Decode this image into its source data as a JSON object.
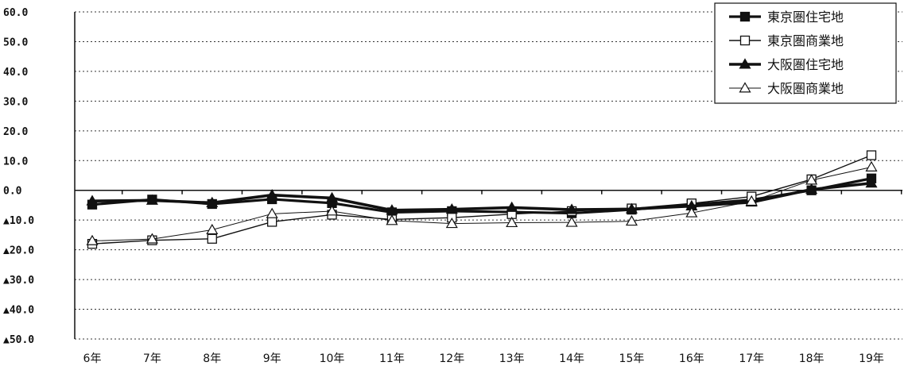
{
  "chart_data": {
    "type": "line",
    "title": "",
    "xlabel": "",
    "ylabel": "",
    "categories": [
      "6年",
      "7年",
      "8年",
      "9年",
      "10年",
      "11年",
      "12年",
      "13年",
      "14年",
      "15年",
      "16年",
      "17年",
      "18年",
      "19年"
    ],
    "ylim": [
      -50,
      60
    ],
    "yticks": [
      60,
      50,
      40,
      30,
      20,
      10,
      0,
      -10,
      -20,
      -30,
      -40,
      -50
    ],
    "ytick_labels": [
      "60.0",
      "50.0",
      "40.0",
      "30.0",
      "20.0",
      "10.0",
      "0.0",
      "▲10.0",
      "▲20.0",
      "▲30.0",
      "▲40.0",
      "▲50.0"
    ],
    "grid": true,
    "legend_position": "top-right",
    "series": [
      {
        "name": "東京圏住宅地",
        "marker": "filled-square",
        "values": [
          -4.8,
          -3.1,
          -4.6,
          -3.0,
          -4.3,
          -7.4,
          -7.0,
          -7.3,
          -7.7,
          -6.5,
          -4.8,
          -3.2,
          0.0,
          4.0
        ]
      },
      {
        "name": "東京圏商業地",
        "marker": "open-square",
        "values": [
          -18.0,
          -16.8,
          -16.3,
          -10.6,
          -8.2,
          -9.8,
          -9.2,
          -8.0,
          -7.0,
          -6.1,
          -4.4,
          -2.1,
          3.7,
          11.8
        ]
      },
      {
        "name": "大阪圏住宅地",
        "marker": "filled-triangle",
        "values": [
          -3.6,
          -3.4,
          -4.2,
          -1.6,
          -2.6,
          -6.7,
          -6.4,
          -5.8,
          -6.5,
          -6.3,
          -5.3,
          -4.0,
          0.3,
          2.4
        ]
      },
      {
        "name": "大阪圏商業地",
        "marker": "open-triangle",
        "values": [
          -17.0,
          -16.4,
          -13.3,
          -7.9,
          -7.0,
          -10.2,
          -11.2,
          -10.9,
          -10.8,
          -10.4,
          -7.6,
          -3.7,
          3.4,
          7.8
        ]
      }
    ]
  },
  "colors": {
    "line": "#111111",
    "grid": "#333333",
    "background": "#ffffff"
  }
}
